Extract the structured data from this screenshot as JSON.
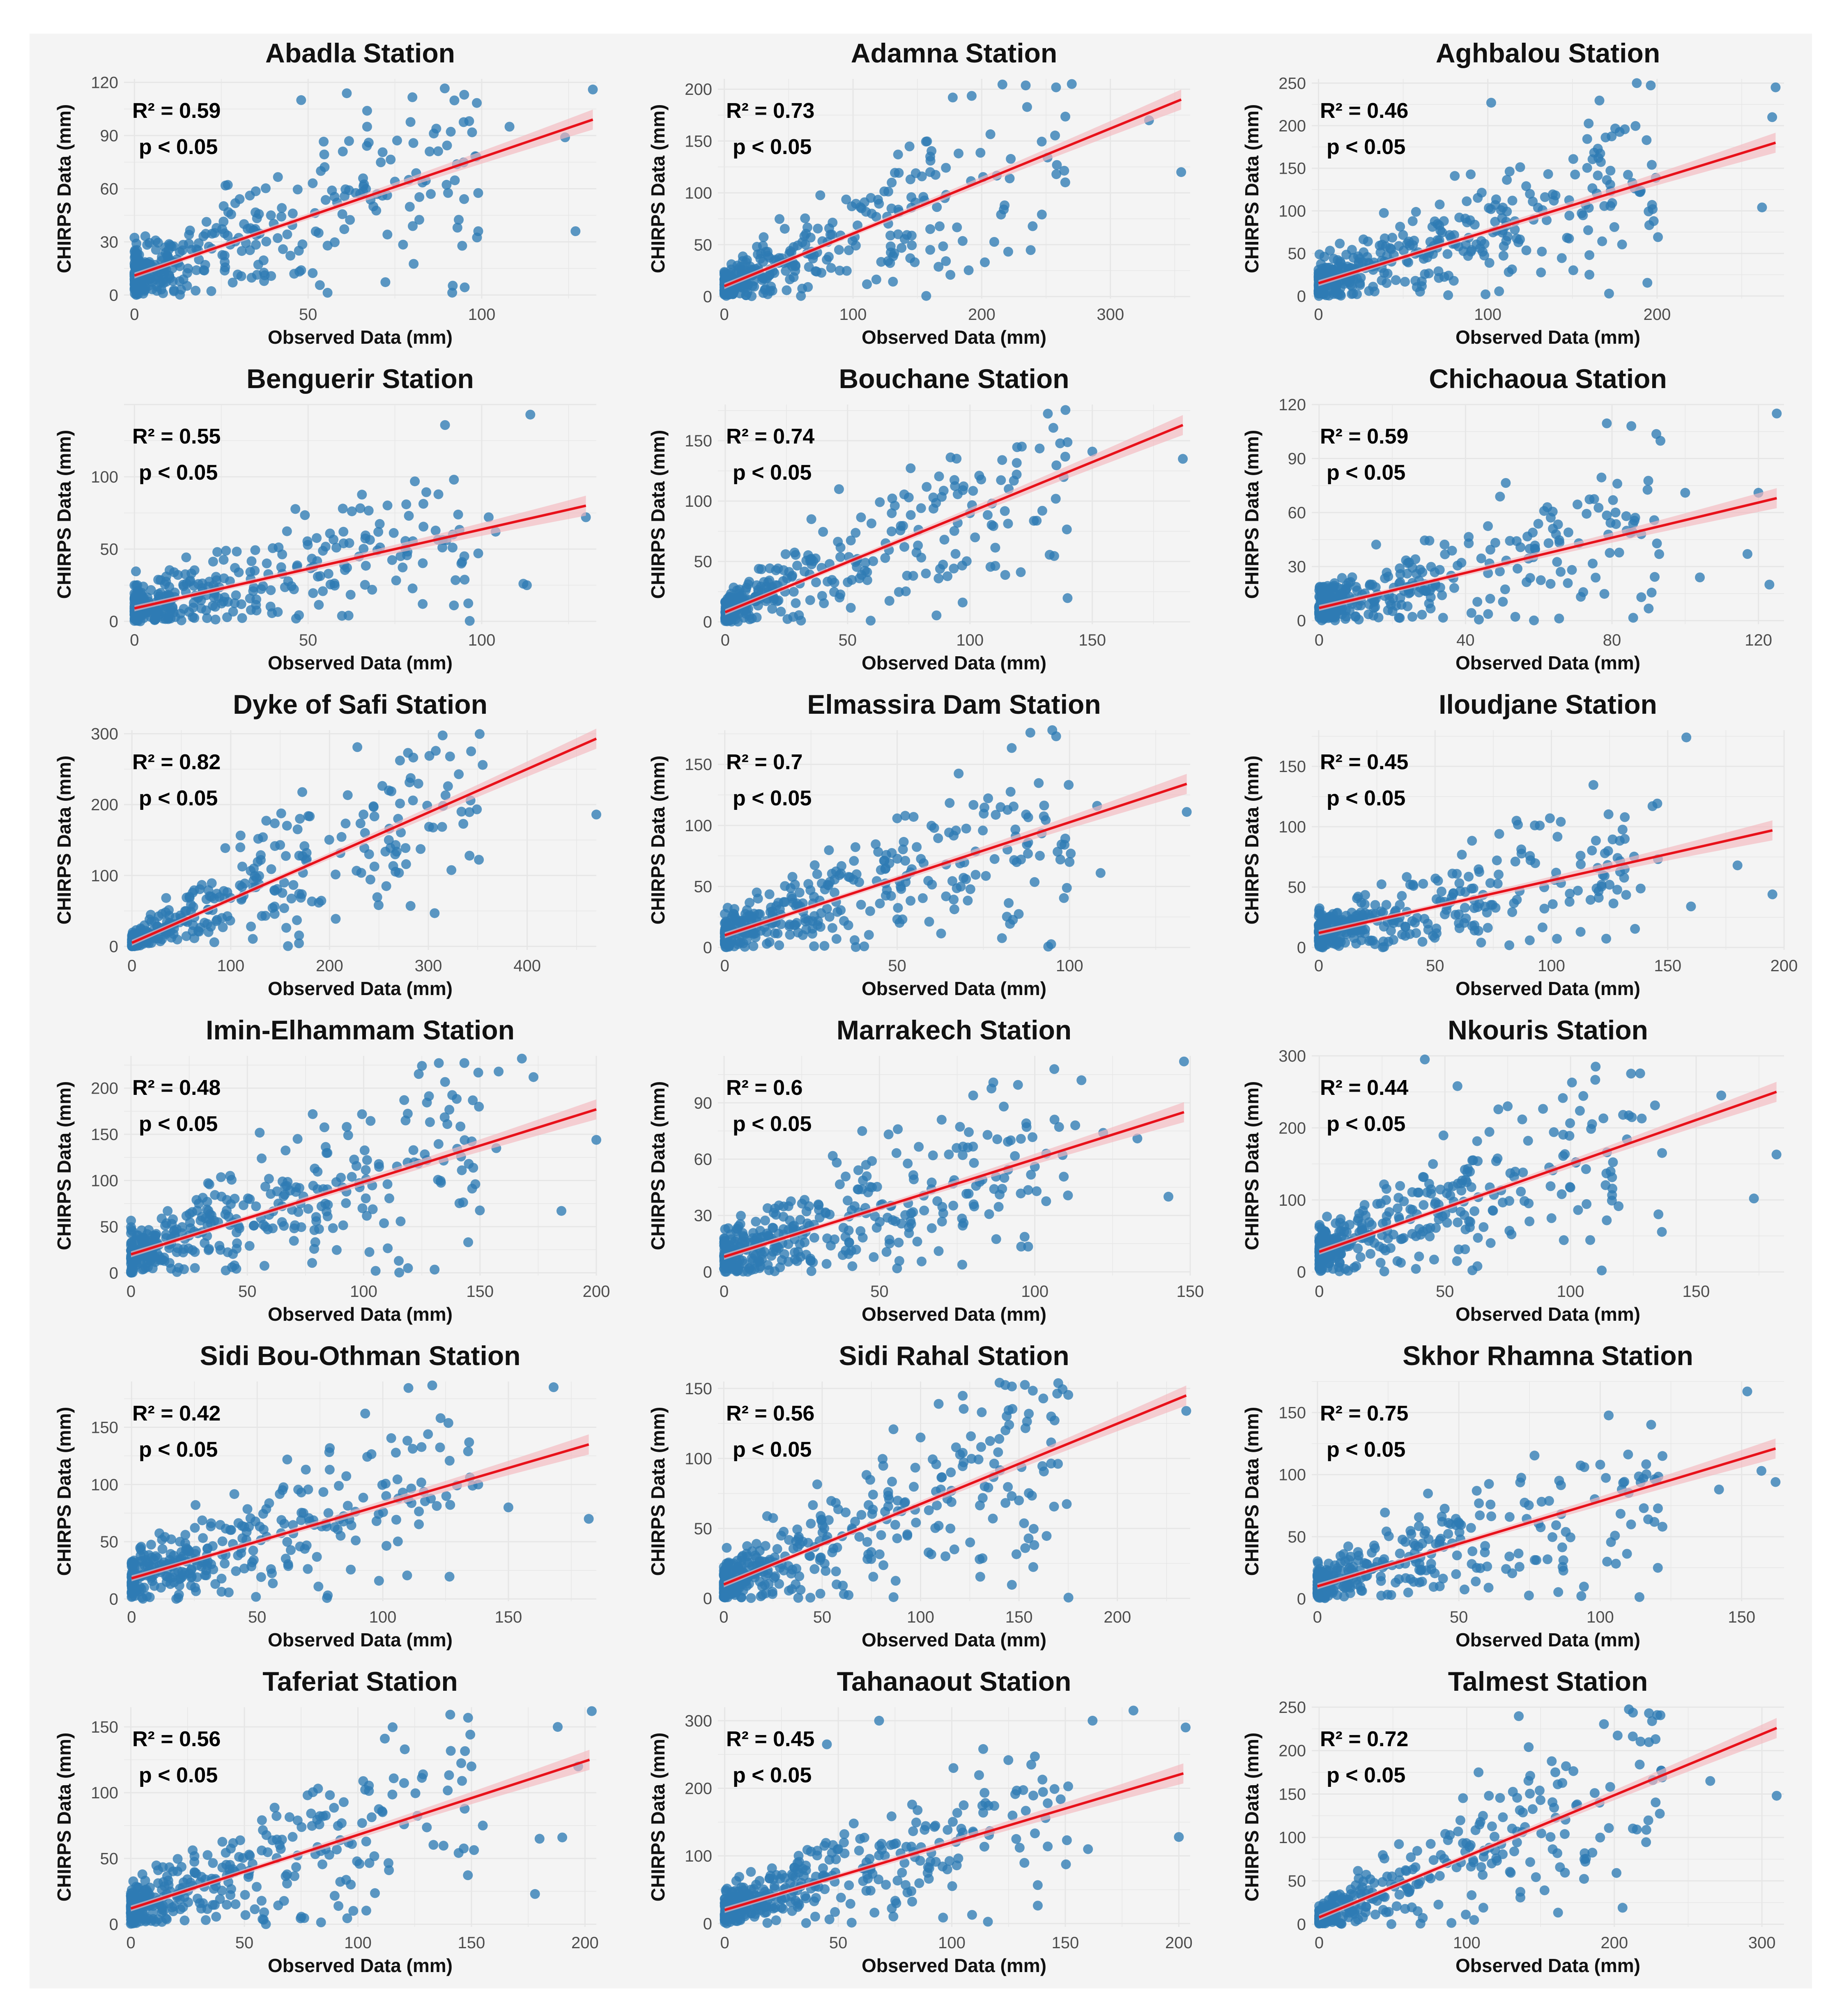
{
  "figure": {
    "xlabel": "Observed Data (mm)",
    "ylabel": "CHIRPS Data (mm)",
    "colors": {
      "points": "#2e7bb4",
      "fit": "#e8111a",
      "band": "#f5b8be",
      "grid": "#e6e6e6",
      "panel_bg": "#f4f4f4"
    }
  },
  "chart_data": [
    {
      "type": "scatter",
      "title": "Abadla Station",
      "r2_label": "R² = 0.59",
      "p_label": "p < 0.05",
      "xlim": [
        -3,
        133
      ],
      "ylim": [
        -2,
        122
      ],
      "xticks": [
        0,
        50,
        100
      ],
      "yticks": [
        0,
        30,
        60,
        90,
        120
      ],
      "fit": [
        [
          0,
          11
        ],
        [
          132,
          99
        ]
      ],
      "n_points": 340,
      "outliers": [
        [
          132,
          116
        ],
        [
          48,
          110
        ],
        [
          67,
          104
        ],
        [
          67,
          95
        ],
        [
          108,
          95
        ],
        [
          124,
          89
        ],
        [
          85,
          81
        ],
        [
          60,
          81
        ],
        [
          79,
          65
        ],
        [
          75,
          64
        ],
        [
          93,
          38
        ],
        [
          99,
          36
        ],
        [
          127,
          36
        ],
        [
          48,
          14
        ],
        [
          46,
          12
        ]
      ]
    },
    {
      "type": "scatter",
      "title": "Adamna Station",
      "r2_label": "R² = 0.73",
      "p_label": "p < 0.05",
      "xlim": [
        -5,
        362
      ],
      "ylim": [
        -2,
        210
      ],
      "xticks": [
        0,
        100,
        200,
        300
      ],
      "yticks": [
        0,
        50,
        100,
        150,
        200
      ],
      "fit": [
        [
          0,
          10
        ],
        [
          355,
          190
        ]
      ],
      "n_points": 320,
      "outliers": [
        [
          270,
          205
        ],
        [
          330,
          170
        ],
        [
          355,
          120
        ],
        [
          258,
          118
        ],
        [
          215,
          79
        ],
        [
          182,
          138
        ],
        [
          160,
          135
        ],
        [
          160,
          120
        ],
        [
          135,
          137
        ],
        [
          160,
          65
        ],
        [
          160,
          45
        ],
        [
          135,
          60
        ]
      ]
    },
    {
      "type": "scatter",
      "title": "Aghbalou Station",
      "r2_label": "R² = 0.46",
      "p_label": "p < 0.05",
      "xlim": [
        -4,
        275
      ],
      "ylim": [
        -3,
        255
      ],
      "xticks": [
        0,
        100,
        200
      ],
      "yticks": [
        0,
        50,
        100,
        150,
        200,
        250
      ],
      "fit": [
        [
          0,
          15
        ],
        [
          270,
          180
        ]
      ],
      "n_points": 360,
      "outliers": [
        [
          188,
          250
        ],
        [
          270,
          245
        ],
        [
          102,
          227
        ],
        [
          268,
          210
        ],
        [
          165,
          173
        ],
        [
          190,
          122
        ],
        [
          197,
          107
        ],
        [
          198,
          88
        ],
        [
          262,
          104
        ],
        [
          160,
          48
        ],
        [
          160,
          25
        ]
      ]
    },
    {
      "type": "scatter",
      "title": "Benguerir Station",
      "r2_label": "R² = 0.55",
      "p_label": "p < 0.05",
      "xlim": [
        -3,
        133
      ],
      "ylim": [
        -2,
        150
      ],
      "xticks": [
        0,
        50,
        100
      ],
      "yticks": [
        0,
        50,
        100
      ],
      "fit": [
        [
          0,
          9
        ],
        [
          130,
          80
        ]
      ],
      "n_points": 330,
      "outliers": [
        [
          114,
          143
        ],
        [
          92,
          98
        ],
        [
          102,
          72
        ],
        [
          130,
          72
        ],
        [
          104,
          62
        ],
        [
          99,
          47
        ],
        [
          112,
          26
        ],
        [
          113,
          25
        ],
        [
          83,
          12
        ],
        [
          92,
          11
        ],
        [
          60,
          78
        ]
      ]
    },
    {
      "type": "scatter",
      "title": "Bouchane Station",
      "r2_label": "R² = 0.74",
      "p_label": "p < 0.05",
      "xlim": [
        -3,
        190
      ],
      "ylim": [
        -2,
        180
      ],
      "xticks": [
        0,
        50,
        100,
        150
      ],
      "yticks": [
        0,
        50,
        100,
        150
      ],
      "fit": [
        [
          0,
          8
        ],
        [
          187,
          163
        ]
      ],
      "n_points": 300,
      "outliers": [
        [
          150,
          141
        ],
        [
          187,
          135
        ],
        [
          100,
          90
        ],
        [
          85,
          103
        ],
        [
          95,
          82
        ],
        [
          75,
          103
        ],
        [
          97,
          16
        ],
        [
          82,
          40
        ]
      ]
    },
    {
      "type": "scatter",
      "title": "Chichaoua Station",
      "r2_label": "R² = 0.59",
      "p_label": "p < 0.05",
      "xlim": [
        -2,
        127
      ],
      "ylim": [
        -2,
        120
      ],
      "xticks": [
        0,
        40,
        80,
        120
      ],
      "yticks": [
        0,
        30,
        60,
        90,
        120
      ],
      "fit": [
        [
          0,
          7
        ],
        [
          125,
          68
        ]
      ],
      "n_points": 330,
      "outliers": [
        [
          125,
          115
        ],
        [
          100,
          71
        ],
        [
          120,
          71
        ],
        [
          88,
          48
        ],
        [
          117,
          37
        ],
        [
          123,
          20
        ],
        [
          88,
          13
        ],
        [
          104,
          24
        ]
      ]
    },
    {
      "type": "scatter",
      "title": "Dyke of Safi Station",
      "r2_label": "R² = 0.82",
      "p_label": "p < 0.05",
      "xlim": [
        -8,
        470
      ],
      "ylim": [
        -5,
        305
      ],
      "xticks": [
        0,
        100,
        200,
        300,
        400
      ],
      "yticks": [
        0,
        100,
        200,
        300
      ],
      "fit": [
        [
          0,
          5
        ],
        [
          470,
          293
        ]
      ],
      "n_points": 330,
      "outliers": [
        [
          355,
          256
        ],
        [
          260,
          220
        ],
        [
          470,
          186
        ],
        [
          260,
          150
        ],
        [
          240,
          130
        ],
        [
          170,
          180
        ],
        [
          150,
          143
        ]
      ]
    },
    {
      "type": "scatter",
      "title": "Elmassira Dam Station",
      "r2_label": "R² = 0.7",
      "p_label": "p < 0.05",
      "xlim": [
        -2,
        135
      ],
      "ylim": [
        -2,
        178
      ],
      "xticks": [
        0,
        50,
        100
      ],
      "yticks": [
        0,
        50,
        100,
        150
      ],
      "fit": [
        [
          0,
          10
        ],
        [
          134,
          134
        ]
      ],
      "n_points": 330,
      "outliers": [
        [
          95,
          178
        ],
        [
          108,
          116
        ],
        [
          134,
          111
        ],
        [
          80,
          115
        ],
        [
          100,
          70
        ],
        [
          109,
          61
        ],
        [
          88,
          86
        ]
      ]
    },
    {
      "type": "scatter",
      "title": "Iloudjane Station",
      "r2_label": "R² = 0.45",
      "p_label": "p < 0.05",
      "xlim": [
        -3,
        200
      ],
      "ylim": [
        -2,
        180
      ],
      "xticks": [
        0,
        50,
        100,
        150,
        200
      ],
      "yticks": [
        0,
        50,
        100,
        150
      ],
      "fit": [
        [
          0,
          12
        ],
        [
          195,
          97
        ]
      ],
      "n_points": 330,
      "outliers": [
        [
          158,
          174
        ],
        [
          85,
          105
        ],
        [
          95,
          101
        ],
        [
          180,
          68
        ],
        [
          195,
          44
        ],
        [
          160,
          34
        ],
        [
          125,
          52
        ],
        [
          123,
          78
        ]
      ]
    },
    {
      "type": "scatter",
      "title": "Imin-Elhammam Station",
      "r2_label": "R² = 0.48",
      "p_label": "p < 0.05",
      "xlim": [
        -3,
        200
      ],
      "ylim": [
        -3,
        235
      ],
      "xticks": [
        0,
        50,
        100,
        150,
        200
      ],
      "yticks": [
        0,
        50,
        100,
        150,
        200
      ],
      "fit": [
        [
          0,
          20
        ],
        [
          200,
          177
        ]
      ],
      "n_points": 360,
      "outliers": [
        [
          168,
          232
        ],
        [
          158,
          218
        ],
        [
          173,
          212
        ],
        [
          200,
          144
        ],
        [
          185,
          67
        ],
        [
          148,
          96
        ],
        [
          118,
          165
        ],
        [
          157,
          135
        ]
      ]
    },
    {
      "type": "scatter",
      "title": "Marrakech Station",
      "r2_label": "R² = 0.6",
      "p_label": "p < 0.05",
      "xlim": [
        -2,
        150
      ],
      "ylim": [
        -2,
        115
      ],
      "xticks": [
        0,
        50,
        100,
        150
      ],
      "yticks": [
        0,
        30,
        60,
        90
      ],
      "fit": [
        [
          0,
          8
        ],
        [
          148,
          85
        ]
      ],
      "n_points": 360,
      "outliers": [
        [
          148,
          112
        ],
        [
          115,
          102
        ],
        [
          90,
          88
        ],
        [
          113,
          78
        ],
        [
          133,
          71
        ],
        [
          122,
          74
        ],
        [
          143,
          40
        ],
        [
          100,
          56
        ]
      ]
    },
    {
      "type": "scatter",
      "title": "Nkouris Station",
      "r2_label": "R² = 0.44",
      "p_label": "p < 0.05",
      "xlim": [
        -3,
        185
      ],
      "ylim": [
        -5,
        300
      ],
      "xticks": [
        0,
        50,
        100,
        150
      ],
      "yticks": [
        0,
        100,
        200,
        300
      ],
      "fit": [
        [
          0,
          28
        ],
        [
          182,
          250
        ]
      ],
      "n_points": 350,
      "outliers": [
        [
          42,
          295
        ],
        [
          110,
          285
        ],
        [
          55,
          258
        ],
        [
          160,
          245
        ],
        [
          182,
          163
        ],
        [
          173,
          102
        ],
        [
          135,
          80
        ],
        [
          75,
          230
        ]
      ]
    },
    {
      "type": "scatter",
      "title": "Sidi Bou-Othman Station",
      "r2_label": "R² = 0.42",
      "p_label": "p < 0.05",
      "xlim": [
        -3,
        185
      ],
      "ylim": [
        -2,
        190
      ],
      "xticks": [
        0,
        50,
        100,
        150
      ],
      "yticks": [
        0,
        50,
        100,
        150
      ],
      "fit": [
        [
          0,
          18
        ],
        [
          182,
          135
        ]
      ],
      "n_points": 340,
      "outliers": [
        [
          168,
          185
        ],
        [
          93,
          162
        ],
        [
          123,
          158
        ],
        [
          118,
          144
        ],
        [
          182,
          70
        ],
        [
          150,
          80
        ],
        [
          138,
          100
        ]
      ]
    },
    {
      "type": "scatter",
      "title": "Sidi Rahal Station",
      "r2_label": "R² = 0.56",
      "p_label": "p < 0.05",
      "xlim": [
        -3,
        237
      ],
      "ylim": [
        -2,
        155
      ],
      "xticks": [
        0,
        50,
        100,
        150,
        200
      ],
      "yticks": [
        0,
        50,
        100,
        150
      ],
      "fit": [
        [
          0,
          10
        ],
        [
          235,
          145
        ]
      ],
      "n_points": 380,
      "outliers": [
        [
          155,
          132
        ],
        [
          145,
          124
        ],
        [
          235,
          134
        ],
        [
          100,
          115
        ],
        [
          118,
          108
        ],
        [
          150,
          70
        ],
        [
          130,
          28
        ]
      ]
    },
    {
      "type": "scatter",
      "title": "Skhor Rhamna Station",
      "r2_label": "R² = 0.75",
      "p_label": "p < 0.05",
      "xlim": [
        -2,
        165
      ],
      "ylim": [
        -2,
        175
      ],
      "xticks": [
        0,
        50,
        100,
        150
      ],
      "yticks": [
        0,
        50,
        100,
        150
      ],
      "fit": [
        [
          0,
          10
        ],
        [
          162,
          121
        ]
      ],
      "n_points": 330,
      "outliers": [
        [
          152,
          167
        ],
        [
          157,
          103
        ],
        [
          162,
          94
        ],
        [
          142,
          88
        ],
        [
          122,
          115
        ],
        [
          122,
          58
        ],
        [
          100,
          108
        ]
      ]
    },
    {
      "type": "scatter",
      "title": "Taferiat Station",
      "r2_label": "R² = 0.56",
      "p_label": "p < 0.05",
      "xlim": [
        -3,
        205
      ],
      "ylim": [
        -2,
        165
      ],
      "xticks": [
        0,
        50,
        100,
        150,
        200
      ],
      "yticks": [
        0,
        50,
        100,
        150
      ],
      "fit": [
        [
          0,
          12
        ],
        [
          202,
          125
        ]
      ],
      "n_points": 340,
      "outliers": [
        [
          203,
          162
        ],
        [
          188,
          150
        ],
        [
          197,
          120
        ],
        [
          178,
          23
        ],
        [
          190,
          66
        ],
        [
          180,
          65
        ],
        [
          150,
          120
        ],
        [
          155,
          75
        ]
      ]
    },
    {
      "type": "scatter",
      "title": "Tahanaout Station",
      "r2_label": "R² = 0.45",
      "p_label": "p < 0.05",
      "xlim": [
        -3,
        205
      ],
      "ylim": [
        -5,
        320
      ],
      "xticks": [
        0,
        50,
        100,
        150,
        200
      ],
      "yticks": [
        0,
        100,
        200,
        300
      ],
      "fit": [
        [
          0,
          20
        ],
        [
          202,
          222
        ]
      ],
      "n_points": 380,
      "outliers": [
        [
          180,
          315
        ],
        [
          162,
          300
        ],
        [
          68,
          300
        ],
        [
          45,
          265
        ],
        [
          203,
          290
        ],
        [
          200,
          128
        ],
        [
          160,
          110
        ],
        [
          135,
          235
        ]
      ]
    },
    {
      "type": "scatter",
      "title": "Talmest Station",
      "r2_label": "R² = 0.72",
      "p_label": "p < 0.05",
      "xlim": [
        -5,
        315
      ],
      "ylim": [
        -3,
        250
      ],
      "xticks": [
        0,
        100,
        200,
        300
      ],
      "yticks": [
        0,
        50,
        100,
        150,
        200,
        250
      ],
      "fit": [
        [
          0,
          8
        ],
        [
          310,
          226
        ]
      ],
      "n_points": 320,
      "outliers": [
        [
          265,
          165
        ],
        [
          310,
          148
        ],
        [
          190,
          140
        ],
        [
          160,
          175
        ],
        [
          150,
          143
        ],
        [
          108,
          175
        ],
        [
          115,
          148
        ],
        [
          105,
          5
        ]
      ]
    }
  ]
}
